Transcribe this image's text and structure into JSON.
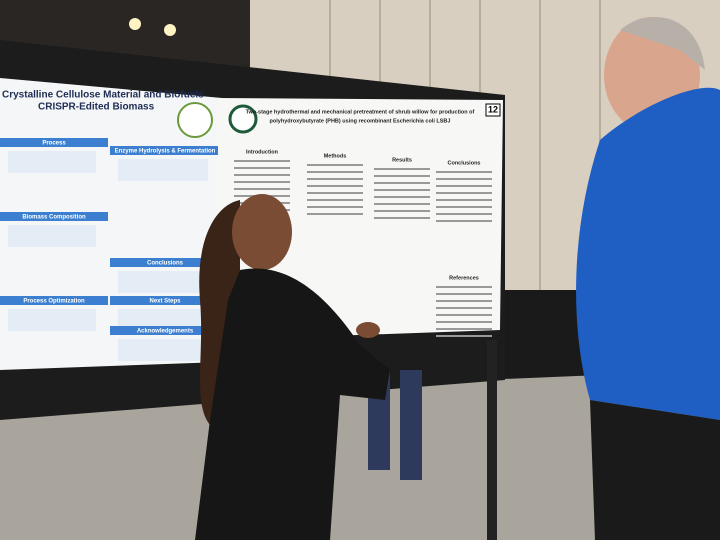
{
  "left_poster": {
    "title_lines": [
      "Crystalline Cellulose Material and Biofuels",
      "CRISPR-Edited Biomass"
    ],
    "sections": [
      "Process",
      "Enzyme Hydrolysis & Fermentation",
      "Biomass Composition",
      "Conclusions",
      "Process Optimization",
      "Next Steps",
      "Acknowledgements"
    ]
  },
  "right_poster": {
    "title_lines": [
      "Two-stage hydrothermal and mechanical pretreatment of shrub willow for production of",
      "polyhydroxybutyrate (PHB) using recombinant Escherichia coli LSBJ"
    ],
    "sections": [
      "Introduction",
      "Methods",
      "Results",
      "Conclusions",
      "References"
    ]
  },
  "poster_number": "12"
}
